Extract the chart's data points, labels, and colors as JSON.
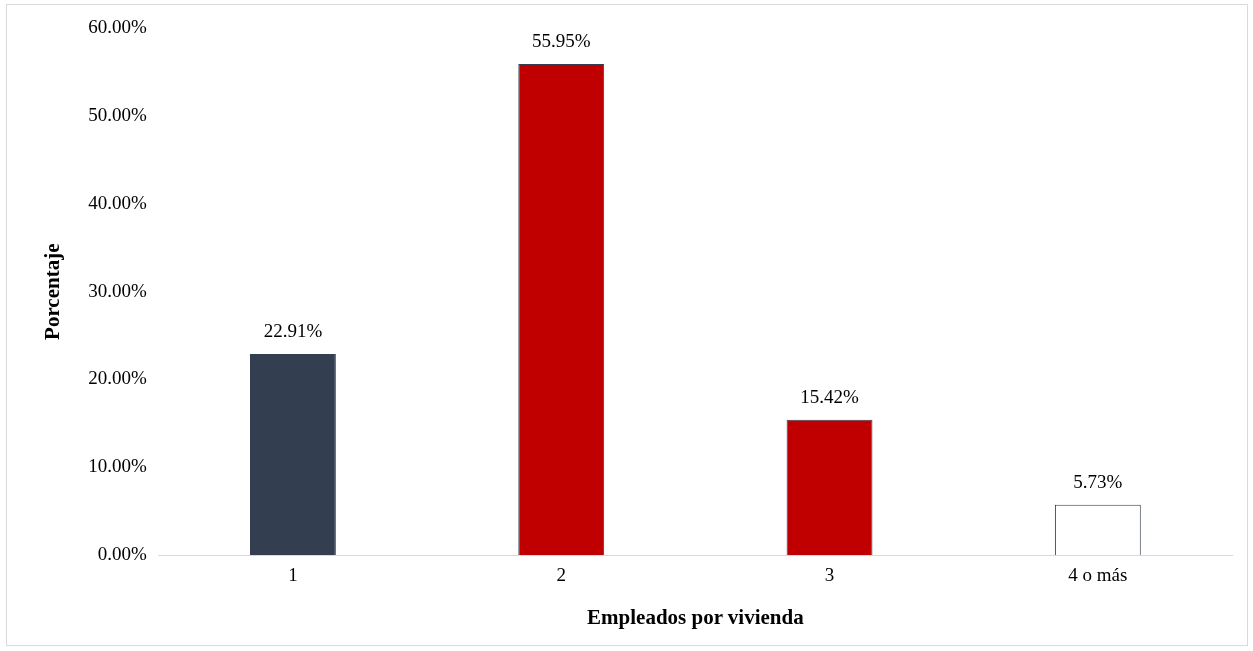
{
  "chart_data": {
    "type": "bar",
    "xlabel": "Empleados por vivienda",
    "ylabel": "Porcentaje",
    "categories": [
      "1",
      "2",
      "3",
      "4 o más"
    ],
    "values": [
      22.91,
      55.95,
      15.42,
      5.73
    ],
    "colors": [
      "#333f50",
      "#c00000",
      "#c00000",
      "#ffffff"
    ],
    "value_labels": [
      "22.91%",
      "55.95%",
      "15.42%",
      "5.73%"
    ],
    "ylim": [
      0,
      60
    ],
    "yticks": [
      {
        "value": 0,
        "label": "0.00%"
      },
      {
        "value": 10,
        "label": "10.00%"
      },
      {
        "value": 20,
        "label": "20.00%"
      },
      {
        "value": 30,
        "label": "30.00%"
      },
      {
        "value": 40,
        "label": "40.00%"
      },
      {
        "value": 50,
        "label": "50.00%"
      },
      {
        "value": 60,
        "label": "60.00%"
      }
    ],
    "grid": false,
    "legend": false
  }
}
